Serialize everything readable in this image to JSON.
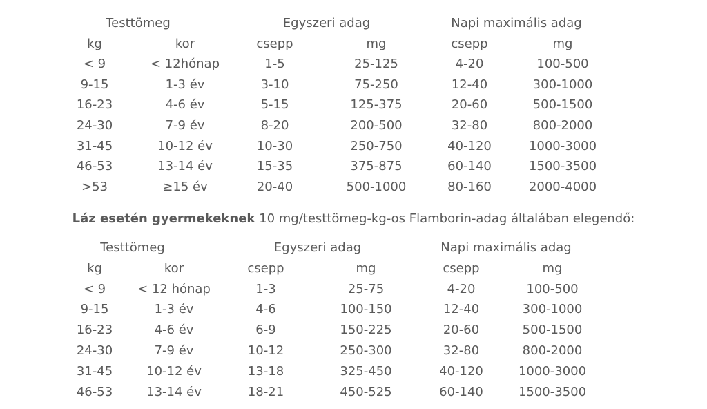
{
  "table1": {
    "groups": [
      "Testtömeg",
      "Egyszeri adag",
      "Napi maximális adag"
    ],
    "subheaders": [
      "kg",
      "kor",
      "csepp",
      "mg",
      "csepp",
      "mg"
    ],
    "rows": [
      [
        "< 9",
        "< 12hónap",
        "1-5",
        "25-125",
        "4-20",
        "100-500"
      ],
      [
        "9-15",
        "1-3 év",
        "3-10",
        "75-250",
        "12-40",
        "300-1000"
      ],
      [
        "16-23",
        "4-6 év",
        "5-15",
        "125-375",
        "20-60",
        "500-1500"
      ],
      [
        "24-30",
        "7-9 év",
        "8-20",
        "200-500",
        "32-80",
        "800-2000"
      ],
      [
        "31-45",
        "10-12 év",
        "10-30",
        "250-750",
        "40-120",
        "1000-3000"
      ],
      [
        "46-53",
        "13-14 év",
        "15-35",
        "375-875",
        "60-140",
        "1500-3500"
      ],
      [
        ">53",
        "≥15 év",
        "20-40",
        "500-1000",
        "80-160",
        "2000-4000"
      ]
    ]
  },
  "paragraph": {
    "bold": "Láz esetén gyermekeknek",
    "text": " 10 mg/testtömeg-kg-os Flamborin-adag általában elegendő:"
  },
  "table2": {
    "groups": [
      "Testtömeg",
      "Egyszeri adag",
      "Napi maximális adag"
    ],
    "subheaders": [
      "kg",
      "kor",
      "csepp",
      "mg",
      "csepp",
      "mg"
    ],
    "rows": [
      [
        "< 9",
        "< 12 hónap",
        "1-3",
        "25-75",
        "4-20",
        "100-500"
      ],
      [
        "9-15",
        "1-3 év",
        "4-6",
        "100-150",
        "12-40",
        "300-1000"
      ],
      [
        "16-23",
        "4-6 év",
        "6-9",
        "150-225",
        "20-60",
        "500-1500"
      ],
      [
        "24-30",
        "7-9 év",
        "10-12",
        "250-300",
        "32-80",
        "800-2000"
      ],
      [
        "31-45",
        "10-12 év",
        "13-18",
        "325-450",
        "40-120",
        "1000-3000"
      ],
      [
        "46-53",
        "13-14 év",
        "18-21",
        "450-525",
        "60-140",
        "1500-3500"
      ]
    ]
  }
}
